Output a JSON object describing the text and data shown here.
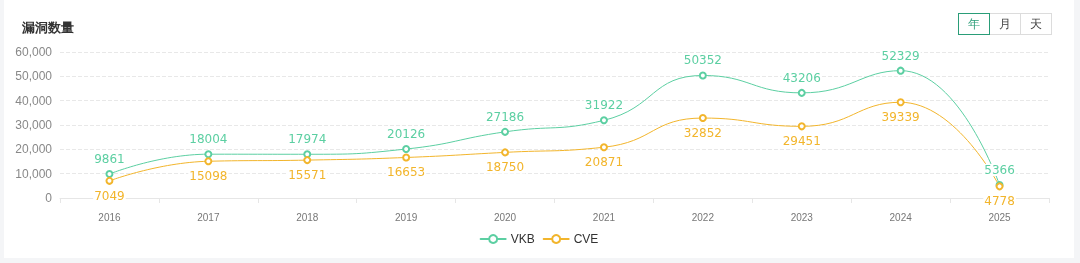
{
  "chart_data": {
    "type": "line",
    "title": "漏洞数量",
    "categories": [
      "2016",
      "2017",
      "2018",
      "2019",
      "2020",
      "2021",
      "2022",
      "2023",
      "2024",
      "2025"
    ],
    "series": [
      {
        "name": "VKB",
        "color": "#5ccfa2",
        "values": [
          9861,
          18004,
          17974,
          20126,
          27186,
          31922,
          50352,
          43206,
          52329,
          5366
        ]
      },
      {
        "name": "CVE",
        "color": "#f2b52c",
        "values": [
          7049,
          15098,
          15571,
          16653,
          18750,
          20871,
          32852,
          29451,
          39339,
          4778
        ]
      }
    ],
    "ylim": [
      0,
      60000
    ],
    "yticks": [
      {
        "value": 0,
        "label": "0"
      },
      {
        "value": 10000,
        "label": "10,000"
      },
      {
        "value": 20000,
        "label": "20,000"
      },
      {
        "value": 30000,
        "label": "30,000"
      },
      {
        "value": 40000,
        "label": "40,000"
      },
      {
        "value": 50000,
        "label": "50,000"
      },
      {
        "value": 60000,
        "label": "60,000"
      }
    ],
    "grid": "y",
    "legend": "bottom",
    "marker": "circle",
    "line_style": "solid",
    "data_labels": true,
    "annotations": [
      "年",
      "月",
      "天"
    ]
  }
}
